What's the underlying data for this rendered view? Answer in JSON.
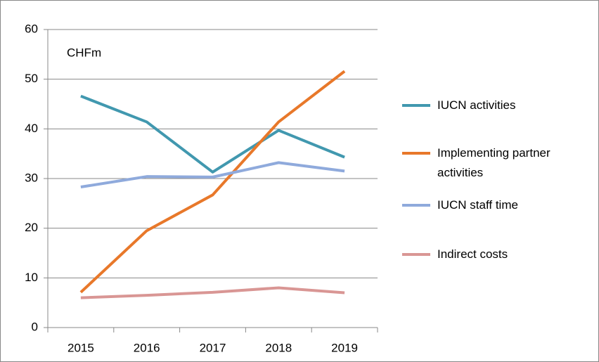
{
  "chart_data": {
    "type": "line",
    "annotation": "CHFm",
    "categories": [
      "2015",
      "2016",
      "2017",
      "2018",
      "2019"
    ],
    "series": [
      {
        "name": "IUCN activities",
        "color": "#4198af",
        "values": [
          46.6,
          41.4,
          31.3,
          39.7,
          34.3
        ]
      },
      {
        "name": "Implementing partner activities",
        "color": "#e8782a",
        "values": [
          7.1,
          19.5,
          26.7,
          41.4,
          51.6
        ]
      },
      {
        "name": "IUCN staff time",
        "color": "#8faadc",
        "values": [
          28.3,
          30.4,
          30.3,
          33.2,
          31.5
        ]
      },
      {
        "name": "Indirect costs",
        "color": "#d99694",
        "values": [
          6.0,
          6.5,
          7.1,
          8.0,
          7.0
        ]
      }
    ],
    "ylim": [
      0,
      60
    ],
    "yticks": [
      0,
      10,
      20,
      30,
      40,
      50,
      60
    ],
    "grid": true
  }
}
